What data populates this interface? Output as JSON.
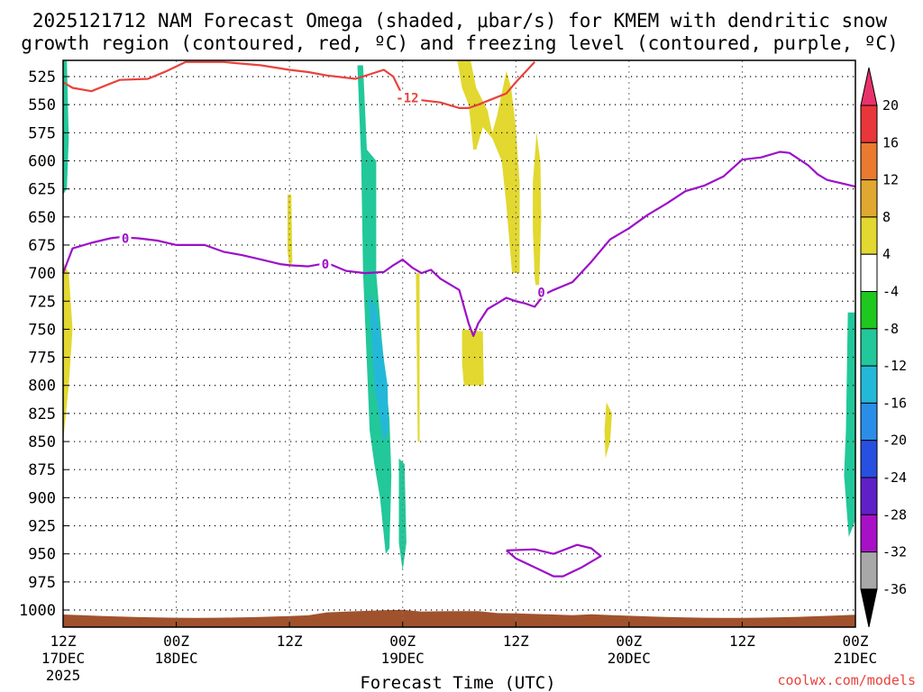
{
  "title": {
    "line1": "2025121712 NAM Forecast Omega (shaded, μbar/s) for KMEM with dendritic snow",
    "line2": "growth region (contoured, red, ºC) and freezing level (contoured, purple, ºC)"
  },
  "credit": "coolwx.com/models",
  "chart_data": {
    "type": "heatmap",
    "title": "2025121712 NAM Forecast Omega (shaded, μbar/s) for KMEM with dendritic snow growth region (contoured, red, ºC) and freezing level (contoured, purple, ºC)",
    "xlabel": "Forecast Time (UTC)",
    "ylabel": "",
    "x_unit": "hours since 2025-12-17 12Z",
    "xlim": [
      0,
      84
    ],
    "ylim": [
      1010,
      510
    ],
    "y_reversed": true,
    "x_ticks": [
      {
        "h": 0,
        "l1": "12Z",
        "l2": "17DEC",
        "l3": "2025"
      },
      {
        "h": 12,
        "l1": "00Z",
        "l2": "18DEC",
        "l3": ""
      },
      {
        "h": 24,
        "l1": "12Z",
        "l2": "",
        "l3": ""
      },
      {
        "h": 36,
        "l1": "00Z",
        "l2": "19DEC",
        "l3": ""
      },
      {
        "h": 48,
        "l1": "12Z",
        "l2": "",
        "l3": ""
      },
      {
        "h": 60,
        "l1": "00Z",
        "l2": "20DEC",
        "l3": ""
      },
      {
        "h": 72,
        "l1": "12Z",
        "l2": "",
        "l3": ""
      },
      {
        "h": 84,
        "l1": "00Z",
        "l2": "21DEC",
        "l3": ""
      }
    ],
    "y_ticks": [
      525,
      550,
      575,
      600,
      625,
      650,
      675,
      700,
      725,
      750,
      775,
      800,
      825,
      850,
      875,
      900,
      925,
      950,
      975,
      1000
    ],
    "grid": true,
    "colorbar": {
      "labels": [
        "20",
        "16",
        "12",
        "8",
        "4",
        "-4",
        "-8",
        "-12",
        "-16",
        "-20",
        "-24",
        "-28",
        "-32",
        "-36"
      ],
      "colors": [
        "#e8336a",
        "#e8363a",
        "#ea7a30",
        "#e0a830",
        "#e2d830",
        "#ffffff",
        "#1ec81e",
        "#22c89a",
        "#24b8d8",
        "#2a8ee8",
        "#2850e0",
        "#6020c8",
        "#a810c8",
        "#a8a8a8",
        "#000000"
      ]
    },
    "series": [
      {
        "name": "dendritic snow growth region (red)",
        "color": "#e8423c",
        "label": "-12",
        "points": [
          [
            0,
            530
          ],
          [
            1,
            535
          ],
          [
            3,
            538
          ],
          [
            6,
            528
          ],
          [
            9,
            527
          ],
          [
            11,
            520
          ],
          [
            13,
            512
          ],
          [
            17,
            512
          ],
          [
            21,
            515
          ],
          [
            24,
            519
          ],
          [
            26,
            521
          ],
          [
            28,
            524
          ],
          [
            31,
            527
          ],
          [
            34,
            519
          ],
          [
            35,
            525
          ],
          [
            36,
            542
          ],
          [
            38,
            546
          ],
          [
            40,
            548
          ],
          [
            42,
            553
          ],
          [
            43,
            553
          ],
          [
            44,
            550
          ],
          [
            47,
            540
          ],
          [
            48,
            530
          ],
          [
            50,
            512
          ]
        ]
      },
      {
        "name": "freezing level (purple)",
        "color": "#9c10c8",
        "label": "0",
        "points": [
          [
            0,
            700
          ],
          [
            1,
            678
          ],
          [
            3,
            673
          ],
          [
            5,
            669
          ],
          [
            6,
            668
          ],
          [
            8,
            669
          ],
          [
            10,
            671
          ],
          [
            12,
            675
          ],
          [
            15,
            675
          ],
          [
            17,
            681
          ],
          [
            19,
            684
          ],
          [
            21,
            688
          ],
          [
            23,
            692
          ],
          [
            24,
            693
          ],
          [
            26,
            694
          ],
          [
            28,
            691
          ],
          [
            30,
            698
          ],
          [
            32,
            700
          ],
          [
            34,
            699
          ],
          [
            35,
            693
          ],
          [
            36,
            688
          ],
          [
            37,
            695
          ],
          [
            38,
            700
          ],
          [
            39,
            697
          ],
          [
            40,
            705
          ],
          [
            42,
            715
          ],
          [
            43,
            745
          ],
          [
            43.5,
            756
          ],
          [
            44,
            745
          ],
          [
            45,
            732
          ],
          [
            46,
            727
          ],
          [
            47,
            722
          ],
          [
            48,
            725
          ],
          [
            49,
            727
          ],
          [
            50,
            730
          ],
          [
            51,
            719
          ],
          [
            52,
            715
          ],
          [
            54,
            708
          ],
          [
            56,
            690
          ],
          [
            58,
            670
          ],
          [
            60,
            660
          ],
          [
            62,
            648
          ],
          [
            64,
            638
          ],
          [
            66,
            627
          ],
          [
            68,
            622
          ],
          [
            70,
            614
          ],
          [
            72,
            599
          ],
          [
            74,
            597
          ],
          [
            76,
            592
          ],
          [
            77,
            593
          ],
          [
            79,
            604
          ],
          [
            80,
            612
          ],
          [
            81,
            617
          ],
          [
            83,
            621
          ],
          [
            84,
            623
          ]
        ]
      },
      {
        "name": "freezing level (purple) closed contour",
        "color": "#9c10c8",
        "label": "",
        "points": [
          [
            47,
            947
          ],
          [
            48,
            954
          ],
          [
            50,
            962
          ],
          [
            52,
            970
          ],
          [
            53,
            970
          ],
          [
            55,
            962
          ],
          [
            57,
            952
          ],
          [
            56,
            945
          ],
          [
            54.5,
            942
          ],
          [
            52,
            950
          ],
          [
            50,
            946
          ],
          [
            47,
            947
          ]
        ]
      }
    ],
    "shaded_regions": [
      {
        "value": -8,
        "points": [
          [
            0,
            510
          ],
          [
            0.4,
            510
          ],
          [
            0.6,
            580
          ],
          [
            0.4,
            625
          ],
          [
            0,
            630
          ]
        ]
      },
      {
        "value": -8,
        "points": [
          [
            31.2,
            515
          ],
          [
            31.8,
            515
          ],
          [
            32.2,
            590
          ],
          [
            33.2,
            600
          ],
          [
            33.2,
            700
          ],
          [
            33.8,
            760
          ],
          [
            34.6,
            830
          ],
          [
            34.8,
            880
          ],
          [
            34.6,
            945
          ],
          [
            34.2,
            950
          ],
          [
            33.6,
            900
          ],
          [
            33,
            870
          ],
          [
            32.5,
            840
          ],
          [
            32.2,
            780
          ],
          [
            31.8,
            700
          ],
          [
            31.6,
            600
          ]
        ]
      },
      {
        "value": -12,
        "points": [
          [
            32.4,
            720
          ],
          [
            33.2,
            730
          ],
          [
            34.4,
            800
          ],
          [
            34.5,
            840
          ],
          [
            34,
            850
          ],
          [
            33,
            800
          ]
        ]
      },
      {
        "value": -8,
        "points": [
          [
            35.6,
            865
          ],
          [
            36.2,
            870
          ],
          [
            36.4,
            940
          ],
          [
            36,
            965
          ],
          [
            35.6,
            940
          ]
        ]
      },
      {
        "value": -8,
        "points": [
          [
            83.2,
            735
          ],
          [
            84,
            735
          ],
          [
            84,
            920
          ],
          [
            83.3,
            935
          ],
          [
            82.8,
            880
          ],
          [
            83,
            840
          ]
        ]
      },
      {
        "value": 4,
        "points": [
          [
            0,
            690
          ],
          [
            0.6,
            700
          ],
          [
            1,
            750
          ],
          [
            0.6,
            800
          ],
          [
            0,
            850
          ]
        ]
      },
      {
        "value": 4,
        "points": [
          [
            23.8,
            630
          ],
          [
            24.2,
            630
          ],
          [
            24.3,
            690
          ],
          [
            24,
            695
          ],
          [
            23.8,
            680
          ]
        ]
      },
      {
        "value": 4,
        "points": [
          [
            37.4,
            700
          ],
          [
            37.8,
            700
          ],
          [
            37.8,
            850
          ],
          [
            37.6,
            850
          ]
        ]
      },
      {
        "value": 4,
        "points": [
          [
            41.8,
            510
          ],
          [
            43.2,
            510
          ],
          [
            43.8,
            535
          ],
          [
            45,
            555
          ],
          [
            45.5,
            575
          ],
          [
            46,
            560
          ],
          [
            47,
            520
          ],
          [
            47.5,
            535
          ],
          [
            48,
            570
          ],
          [
            48.4,
            620
          ],
          [
            48.4,
            700
          ],
          [
            47.6,
            700
          ],
          [
            47,
            640
          ],
          [
            46.5,
            600
          ],
          [
            45.5,
            580
          ],
          [
            44.5,
            570
          ],
          [
            43.8,
            590
          ],
          [
            43.5,
            590
          ],
          [
            43,
            550
          ],
          [
            42.3,
            535
          ]
        ]
      },
      {
        "value": 4,
        "points": [
          [
            42.3,
            750
          ],
          [
            44.5,
            752
          ],
          [
            44.6,
            800
          ],
          [
            42.5,
            800
          ],
          [
            42.3,
            780
          ]
        ]
      },
      {
        "value": 4,
        "points": [
          [
            50.2,
            575
          ],
          [
            50.6,
            600
          ],
          [
            50.7,
            650
          ],
          [
            50.4,
            730
          ],
          [
            50,
            705
          ],
          [
            49.8,
            660
          ],
          [
            49.8,
            620
          ]
        ]
      },
      {
        "value": 4,
        "points": [
          [
            57.6,
            815
          ],
          [
            58.2,
            825
          ],
          [
            58,
            850
          ],
          [
            57.5,
            865
          ],
          [
            57.4,
            840
          ]
        ]
      }
    ],
    "terrain_color": "#a0522d"
  }
}
